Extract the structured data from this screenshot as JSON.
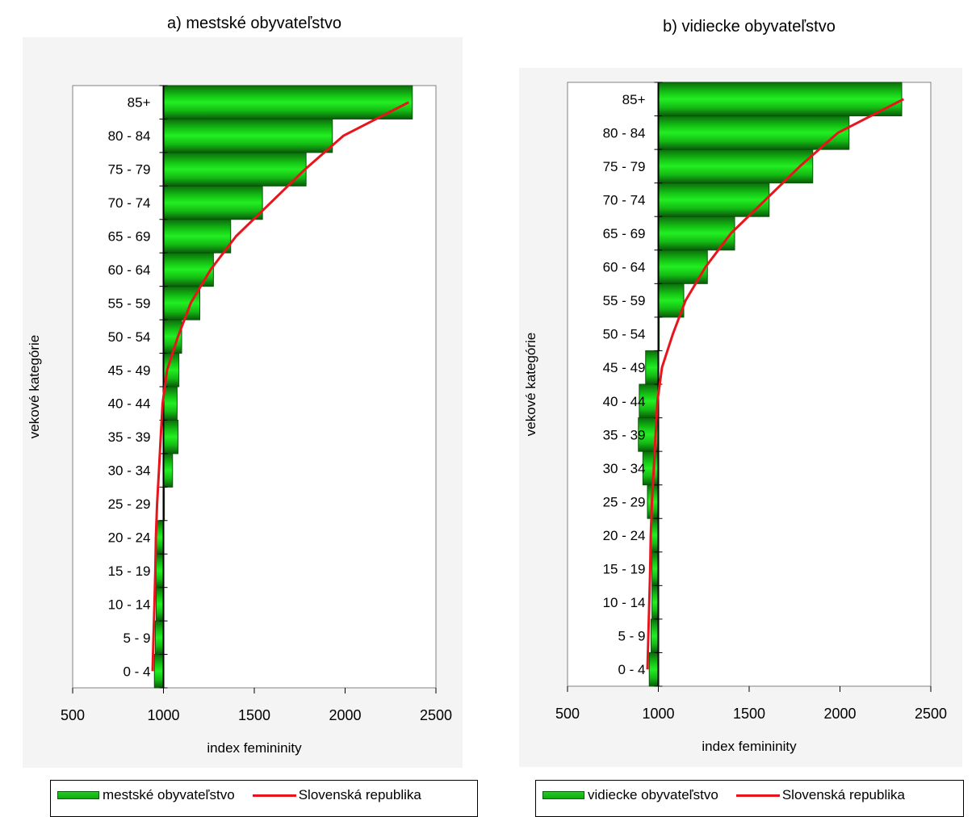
{
  "chart_data": [
    {
      "type": "bar",
      "orientation": "horizontal",
      "title": "a) mestské obyvateľstvo",
      "xlabel": "index femininity",
      "ylabel": "vekové kategórie",
      "xlim": [
        500,
        2500
      ],
      "x_ticks": [
        "500",
        "1000",
        "1500",
        "2000",
        "2500"
      ],
      "bar_base": 1000,
      "categories": [
        "0 - 4",
        "5 - 9",
        "10 - 14",
        "15 - 19",
        "20 - 24",
        "25 - 29",
        "30 - 34",
        "35 - 39",
        "40 - 44",
        "45 - 49",
        "50 - 54",
        "55 - 59",
        "60 - 64",
        "65 - 69",
        "70 - 74",
        "75 - 79",
        "80 - 84",
        "85+"
      ],
      "series": [
        {
          "name": "mestské obyvateľstvo",
          "kind": "bar",
          "values": [
            950,
            955,
            960,
            960,
            962,
            1005,
            1050,
            1080,
            1075,
            1085,
            1100,
            1200,
            1275,
            1370,
            1545,
            1785,
            1930,
            2370
          ]
        },
        {
          "name": "Slovenská republika",
          "kind": "line",
          "values": [
            940,
            945,
            950,
            955,
            958,
            965,
            975,
            985,
            995,
            1020,
            1080,
            1150,
            1260,
            1400,
            1590,
            1780,
            1990,
            2350
          ]
        }
      ],
      "legend": "bottom",
      "colors": {
        "bar": "#11bb11",
        "line": "#e8141c"
      }
    },
    {
      "type": "bar",
      "orientation": "horizontal",
      "title": "b) vidiecke obyvateľstvo",
      "xlabel": "index femininity",
      "ylabel": "vekové kategórie",
      "xlim": [
        500,
        2500
      ],
      "x_ticks": [
        "500",
        "1000",
        "1500",
        "2000",
        "2500"
      ],
      "bar_base": 1000,
      "categories": [
        "0 - 4",
        "5 - 9",
        "10 - 14",
        "15 - 19",
        "20 - 24",
        "25 - 29",
        "30 - 34",
        "35 - 39",
        "40 - 44",
        "45 - 49",
        "50 - 54",
        "55 - 59",
        "60 - 64",
        "65 - 69",
        "70 - 74",
        "75 - 79",
        "80 - 84",
        "85+"
      ],
      "series": [
        {
          "name": "vidiecke obyvateľstvo",
          "kind": "bar",
          "values": [
            950,
            960,
            965,
            965,
            960,
            940,
            915,
            890,
            895,
            930,
            1005,
            1140,
            1270,
            1420,
            1610,
            1850,
            2050,
            2340
          ]
        },
        {
          "name": "Slovenská republika",
          "kind": "line",
          "values": [
            940,
            945,
            950,
            955,
            958,
            965,
            975,
            985,
            995,
            1020,
            1080,
            1150,
            1260,
            1400,
            1590,
            1780,
            1990,
            2350
          ]
        }
      ],
      "legend": "bottom",
      "colors": {
        "bar": "#11bb11",
        "line": "#e8141c"
      }
    }
  ]
}
